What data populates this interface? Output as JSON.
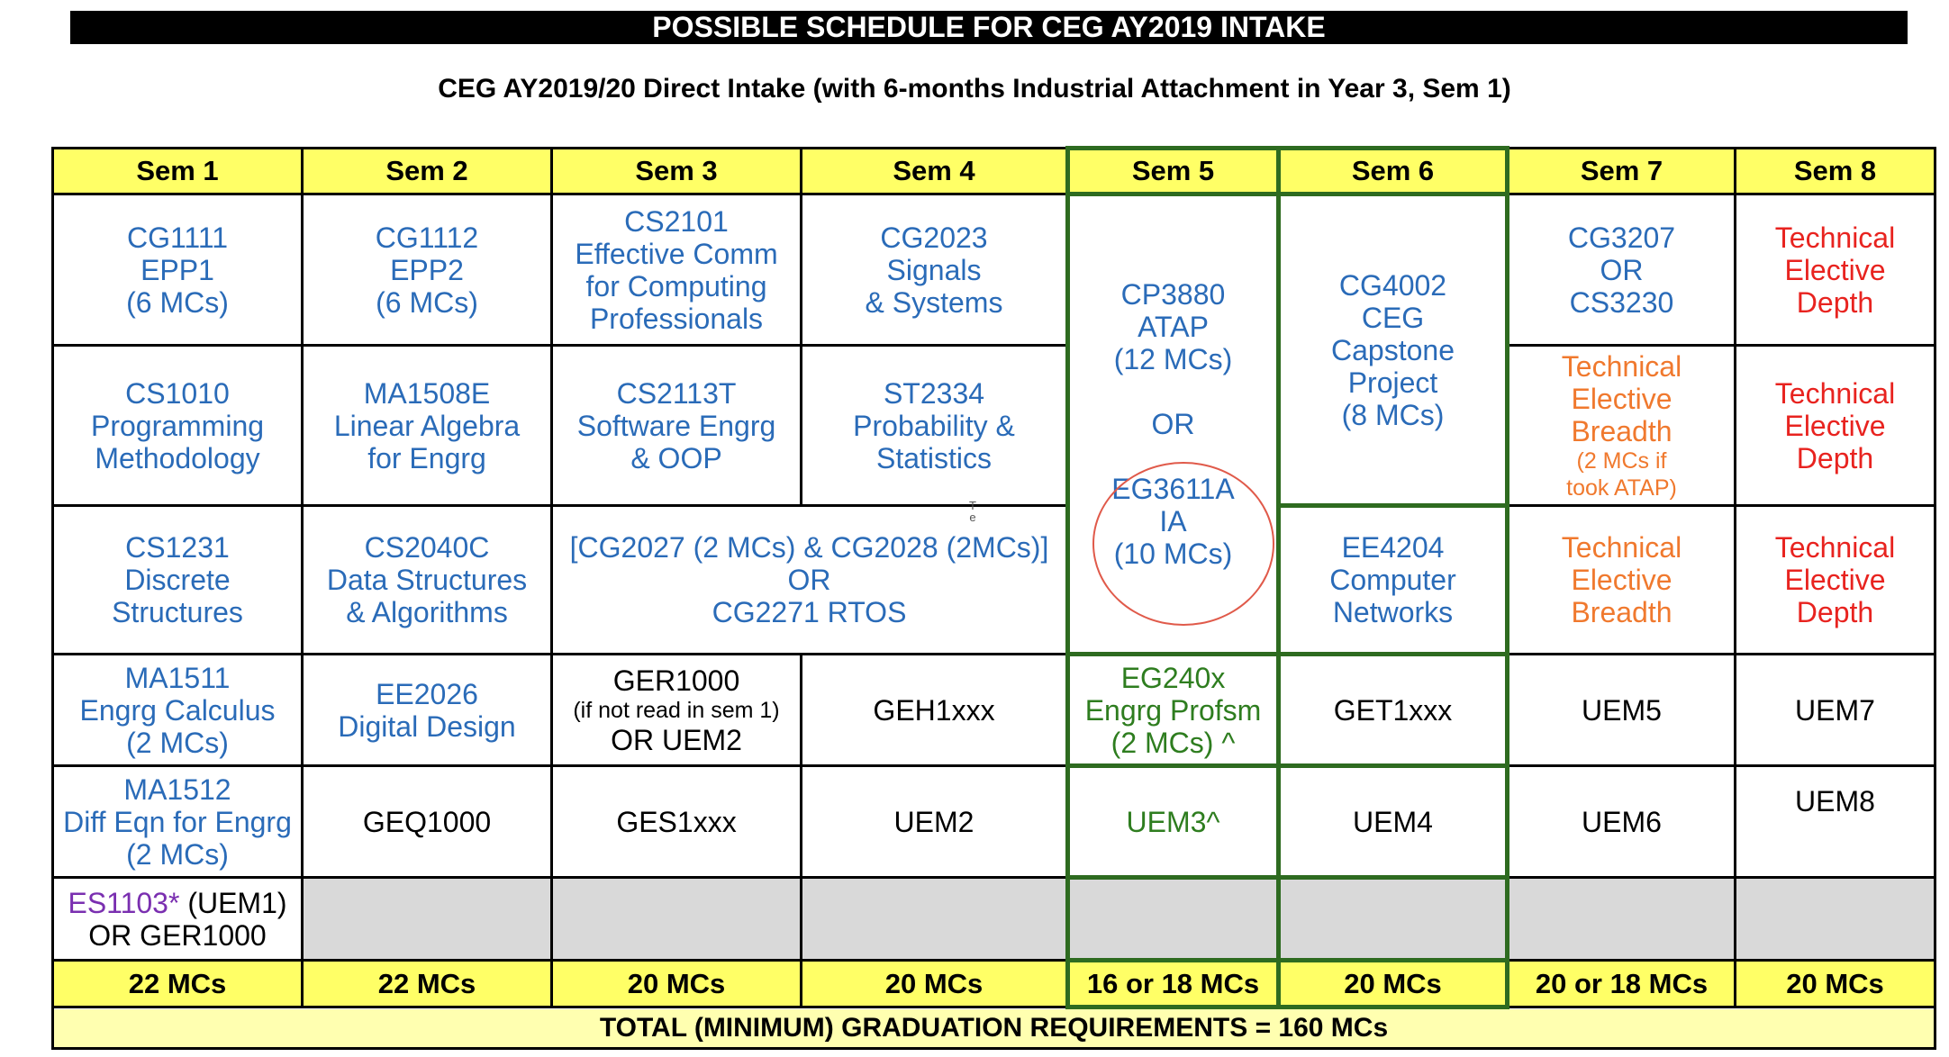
{
  "banner": "POSSIBLE SCHEDULE FOR CEG AY2019 INTAKE",
  "subtitle": "CEG AY2019/20 Direct Intake (with 6-months Industrial Attachment in Year 3, Sem 1)",
  "headers": [
    "Sem 1",
    "Sem 2",
    "Sem 3",
    "Sem 4",
    "Sem 5",
    "Sem 6",
    "Sem 7",
    "Sem 8"
  ],
  "row1": {
    "s1": [
      "CG1111",
      "EPP1",
      "(6 MCs)"
    ],
    "s2": [
      "CG1112",
      "EPP2",
      "(6 MCs)"
    ],
    "s3": [
      "CS2101",
      "Effective Comm",
      "for Computing",
      "Professionals"
    ],
    "s4": [
      "CG2023",
      "Signals",
      "& Systems"
    ],
    "s5": [
      "CP3880",
      "ATAP",
      "(12 MCs)",
      "",
      "OR",
      "",
      "EG3611A",
      "IA",
      "(10 MCs)"
    ],
    "s6": [
      "CG4002",
      "CEG",
      "Capstone",
      "Project",
      "(8 MCs)"
    ],
    "s7": [
      "CG3207",
      "OR",
      "CS3230"
    ],
    "s8": [
      "Technical",
      "Elective",
      "Depth"
    ]
  },
  "row2": {
    "s1": [
      "CS1010",
      "Programming",
      "Methodology"
    ],
    "s2": [
      "MA1508E",
      "Linear Algebra",
      "for Engrg"
    ],
    "s3": [
      "CS2113T",
      "Software Engrg",
      "& OOP"
    ],
    "s4": [
      "ST2334",
      "Probability &",
      "Statistics"
    ],
    "s7": [
      "Technical",
      "Elective",
      "Breadth"
    ],
    "s7_note": [
      "(2 MCs if",
      "took ATAP)"
    ],
    "s8": [
      "Technical",
      "Elective",
      "Depth"
    ]
  },
  "row3": {
    "s1": [
      "CS1231",
      "Discrete",
      "Structures"
    ],
    "s2": [
      "CS2040C",
      "Data Structures",
      "& Algorithms"
    ],
    "s34": [
      "[CG2027 (2 MCs) & CG2028 (2MCs)]",
      "OR",
      "CG2271 RTOS"
    ],
    "s6": [
      "EE4204",
      "Computer",
      "Networks"
    ],
    "s7": [
      "Technical",
      "Elective",
      "Breadth"
    ],
    "s8": [
      "Technical",
      "Elective",
      "Depth"
    ],
    "stray_mark": "T e"
  },
  "row4": {
    "s1": [
      "MA1511",
      "Engrg Calculus",
      "(2 MCs)"
    ],
    "s2": [
      "EE2026",
      "Digital Design"
    ],
    "s3_main": "GER1000",
    "s3_note": "(if not read in sem 1)",
    "s3_alt": "OR UEM2",
    "s4": "GEH1xxx",
    "s5": [
      "EG240x",
      "Engrg Profsm",
      "(2 MCs) ^"
    ],
    "s6": "GET1xxx",
    "s7": "UEM5",
    "s8": "UEM7"
  },
  "row5": {
    "s1": [
      "MA1512",
      "Diff Eqn for Engrg",
      "(2 MCs)"
    ],
    "s2": "GEQ1000",
    "s3": "GES1xxx",
    "s4": "UEM2",
    "s5": "UEM3^",
    "s6": "UEM4",
    "s7": "UEM6",
    "s8": "UEM8"
  },
  "row6": {
    "s1_code": "ES1103*",
    "s1_rest": " (UEM1)",
    "s1_alt": "OR GER1000"
  },
  "totals": [
    "22 MCs",
    "22 MCs",
    "20 MCs",
    "20 MCs",
    "16 or 18 MCs",
    "20 MCs",
    "20 or 18 MCs",
    "20 MCs"
  ],
  "grand_total": "TOTAL (MINIMUM) GRADUATION REQUIREMENTS = 160 MCs",
  "colors": {
    "core_blue": "#2a6bb8",
    "depth_red": "#e8231f",
    "breadth_orange": "#f0792e",
    "sem5_green": "#2e7d1f",
    "uem_purple": "#7a2fb0",
    "header_yellow": "#ffff66",
    "grand_total_yellow": "#ffffb0",
    "empty_gray": "#d9d9d9"
  }
}
